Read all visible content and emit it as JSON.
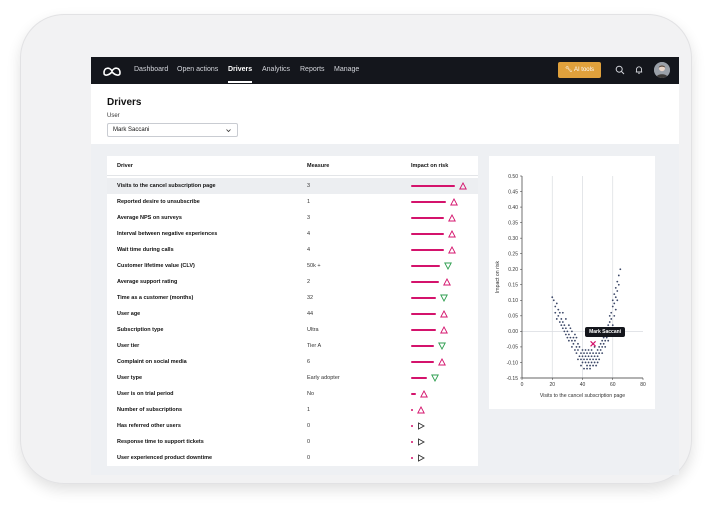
{
  "nav": {
    "items": [
      {
        "label": "Dashboard",
        "active": false
      },
      {
        "label": "Open actions",
        "active": false
      },
      {
        "label": "Drivers",
        "active": true
      },
      {
        "label": "Analytics",
        "active": false
      },
      {
        "label": "Reports",
        "active": false
      },
      {
        "label": "Manage",
        "active": false
      }
    ],
    "ai_tools_label": "AI tools",
    "icons": [
      "search-icon",
      "bell-icon",
      "avatar"
    ]
  },
  "page": {
    "title": "Drivers",
    "user_label": "User",
    "user_value": "Mark Saccani"
  },
  "table": {
    "headers": {
      "driver": "Driver",
      "measure": "Measure",
      "impact": "Impact on risk"
    },
    "rows": [
      {
        "driver": "Visits to the cancel subscription page",
        "measure": "3",
        "impact": 1.0,
        "direction": "up"
      },
      {
        "driver": "Reported desire to unsubscribe",
        "measure": "1",
        "impact": 0.8,
        "direction": "up"
      },
      {
        "driver": "Average NPS on surveys",
        "measure": "3",
        "impact": 0.75,
        "direction": "up"
      },
      {
        "driver": "Interval between negative experiences",
        "measure": "4",
        "impact": 0.75,
        "direction": "up"
      },
      {
        "driver": "Wait time during calls",
        "measure": "4",
        "impact": 0.75,
        "direction": "up"
      },
      {
        "driver": "Customer lifetime value (CLV)",
        "measure": "50k +",
        "impact": 0.66,
        "direction": "down"
      },
      {
        "driver": "Average support rating",
        "measure": "2",
        "impact": 0.64,
        "direction": "up"
      },
      {
        "driver": "Time as a customer (months)",
        "measure": "32",
        "impact": 0.57,
        "direction": "down"
      },
      {
        "driver": "User age",
        "measure": "44",
        "impact": 0.57,
        "direction": "up"
      },
      {
        "driver": "Subscription type",
        "measure": "Ultra",
        "impact": 0.57,
        "direction": "up"
      },
      {
        "driver": "User tier",
        "measure": "Tier A",
        "impact": 0.52,
        "direction": "down"
      },
      {
        "driver": "Complaint on social media",
        "measure": "6",
        "impact": 0.52,
        "direction": "up"
      },
      {
        "driver": "User type",
        "measure": "Early adopter",
        "impact": 0.36,
        "direction": "down"
      },
      {
        "driver": "User is on trial period",
        "measure": "No",
        "impact": 0.11,
        "direction": "up"
      },
      {
        "driver": "Number of subscriptions",
        "measure": "1",
        "impact": 0.04,
        "direction": "up"
      },
      {
        "driver": "Has referred other users",
        "measure": "0",
        "impact": 0.0,
        "direction": "neutral"
      },
      {
        "driver": "Response time to support tickets",
        "measure": "0",
        "impact": 0.0,
        "direction": "neutral"
      },
      {
        "driver": "User experienced product downtime",
        "measure": "0",
        "impact": 0.0,
        "direction": "neutral"
      }
    ]
  },
  "colors": {
    "bar": "#d4136c",
    "up_marker": "#d4136c",
    "down_marker": "#2e9e4f",
    "neutral_marker": "#333333",
    "accent_button": "#e0a13c",
    "nav_bg": "#14161c",
    "point": "#3b4767",
    "selected_point": "#d4136c"
  },
  "chart_data": {
    "type": "scatter",
    "title": "",
    "xlabel": "Visits to the cancel subscription page",
    "ylabel": "Impact on risk",
    "xlim": [
      0,
      80
    ],
    "ylim": [
      -0.15,
      0.5
    ],
    "xticks": [
      0,
      20,
      40,
      60,
      80
    ],
    "yticks": [
      -0.15,
      -0.1,
      -0.05,
      0.0,
      0.05,
      0.1,
      0.15,
      0.2,
      0.25,
      0.3,
      0.35,
      0.4,
      0.45,
      0.5
    ],
    "vertical_gridlines_at": [
      20,
      40,
      60
    ],
    "highlight": {
      "label": "Mark Saccani",
      "x": 47,
      "y": -0.04
    },
    "points": [
      [
        20,
        0.11
      ],
      [
        21,
        0.1
      ],
      [
        22,
        0.08
      ],
      [
        22,
        0.06
      ],
      [
        23,
        0.09
      ],
      [
        23,
        0.04
      ],
      [
        24,
        0.05
      ],
      [
        24,
        0.07
      ],
      [
        25,
        0.03
      ],
      [
        25,
        0.06
      ],
      [
        26,
        0.02
      ],
      [
        26,
        0.04
      ],
      [
        27,
        0.01
      ],
      [
        27,
        0.03
      ],
      [
        28,
        0.0
      ],
      [
        28,
        0.02
      ],
      [
        29,
        -0.01
      ],
      [
        29,
        0.01
      ],
      [
        30,
        -0.02
      ],
      [
        30,
        0.0
      ],
      [
        31,
        -0.01
      ],
      [
        31,
        -0.03
      ],
      [
        32,
        -0.02
      ],
      [
        32,
        0.01
      ],
      [
        33,
        -0.03
      ],
      [
        33,
        -0.05
      ],
      [
        34,
        -0.04
      ],
      [
        34,
        -0.02
      ],
      [
        35,
        -0.06
      ],
      [
        35,
        -0.03
      ],
      [
        36,
        -0.05
      ],
      [
        36,
        -0.07
      ],
      [
        37,
        -0.04
      ],
      [
        37,
        -0.06
      ],
      [
        38,
        -0.08
      ],
      [
        38,
        -0.05
      ],
      [
        39,
        -0.07
      ],
      [
        39,
        -0.09
      ],
      [
        40,
        -0.06
      ],
      [
        40,
        -0.08
      ],
      [
        40,
        -0.1
      ],
      [
        41,
        -0.07
      ],
      [
        41,
        -0.09
      ],
      [
        42,
        -0.08
      ],
      [
        42,
        -0.1
      ],
      [
        42,
        -0.06
      ],
      [
        43,
        -0.09
      ],
      [
        43,
        -0.07
      ],
      [
        43,
        -0.11
      ],
      [
        44,
        -0.08
      ],
      [
        44,
        -0.1
      ],
      [
        44,
        -0.06
      ],
      [
        45,
        -0.09
      ],
      [
        45,
        -0.07
      ],
      [
        45,
        -0.11
      ],
      [
        46,
        -0.08
      ],
      [
        46,
        -0.1
      ],
      [
        46,
        -0.06
      ],
      [
        47,
        -0.09
      ],
      [
        47,
        -0.07
      ],
      [
        48,
        -0.08
      ],
      [
        48,
        -0.1
      ],
      [
        48,
        -0.05
      ],
      [
        49,
        -0.07
      ],
      [
        49,
        -0.09
      ],
      [
        50,
        -0.06
      ],
      [
        50,
        -0.08
      ],
      [
        50,
        -0.1
      ],
      [
        51,
        -0.05
      ],
      [
        51,
        -0.07
      ],
      [
        52,
        -0.06
      ],
      [
        52,
        -0.04
      ],
      [
        53,
        -0.05
      ],
      [
        53,
        -0.03
      ],
      [
        54,
        -0.02
      ],
      [
        54,
        -0.04
      ],
      [
        55,
        -0.01
      ],
      [
        55,
        -0.03
      ],
      [
        56,
        0.0
      ],
      [
        56,
        -0.02
      ],
      [
        57,
        0.02
      ],
      [
        57,
        0.0
      ],
      [
        58,
        0.03
      ],
      [
        58,
        0.05
      ],
      [
        59,
        0.06
      ],
      [
        59,
        0.04
      ],
      [
        60,
        0.08
      ],
      [
        60,
        0.1
      ],
      [
        61,
        0.12
      ],
      [
        61,
        0.09
      ],
      [
        62,
        0.14
      ],
      [
        62,
        0.11
      ],
      [
        63,
        0.16
      ],
      [
        63,
        0.13
      ],
      [
        64,
        0.18
      ],
      [
        64,
        0.15
      ],
      [
        65,
        0.2
      ],
      [
        62,
        0.07
      ],
      [
        60,
        0.02
      ],
      [
        58,
        -0.01
      ],
      [
        37,
        -0.09
      ],
      [
        39,
        -0.11
      ],
      [
        41,
        -0.12
      ],
      [
        43,
        -0.12
      ],
      [
        45,
        -0.12
      ],
      [
        47,
        -0.11
      ],
      [
        49,
        -0.11
      ],
      [
        51,
        -0.09
      ],
      [
        53,
        -0.07
      ],
      [
        55,
        -0.05
      ],
      [
        29,
        0.04
      ],
      [
        31,
        0.02
      ],
      [
        33,
        0.0
      ],
      [
        35,
        -0.01
      ],
      [
        27,
        0.06
      ],
      [
        63,
        0.1
      ],
      [
        61,
        0.05
      ],
      [
        59,
        0.01
      ],
      [
        57,
        -0.03
      ],
      [
        36,
        -0.02
      ]
    ]
  }
}
